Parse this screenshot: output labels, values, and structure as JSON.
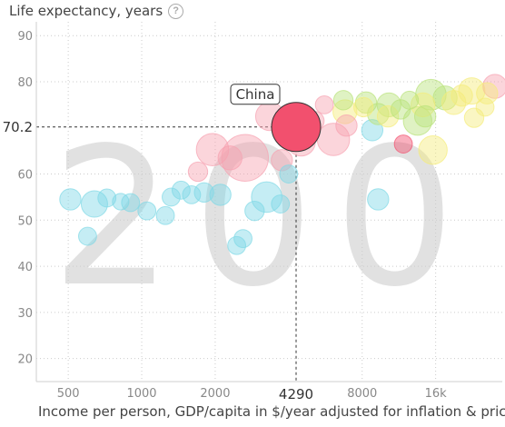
{
  "chart_data": {
    "type": "scatter",
    "title": "",
    "ylabel": "Life expectancy, years",
    "xlabel": "Income per person, GDP/capita in $/year adjusted for inflation & prices",
    "x_scale": "log",
    "xlim": [
      370,
      30000
    ],
    "ylim": [
      15,
      93
    ],
    "x_ticks": [
      500,
      1000,
      2000,
      4290,
      8000,
      16000
    ],
    "x_tick_labels": [
      "500",
      "1000",
      "2000",
      "4290",
      "8000",
      "16k"
    ],
    "y_ticks": [
      20,
      30,
      40,
      50,
      60,
      70.2,
      80,
      90
    ],
    "y_tick_labels": [
      "20",
      "30",
      "40",
      "50",
      "60",
      "70.2",
      "80",
      "90"
    ],
    "grid": true,
    "year_watermark": "200",
    "highlighted": {
      "name": "China",
      "x": 4290,
      "y": 70.2,
      "size": 1,
      "color": "#f2506e"
    },
    "points": [
      {
        "x": 510,
        "y": 54.5,
        "size": 0.15,
        "color": "#7fd8e6"
      },
      {
        "x": 640,
        "y": 53.5,
        "size": 0.25,
        "color": "#7fd8e6"
      },
      {
        "x": 600,
        "y": 46.5,
        "size": 0.1,
        "color": "#7fd8e6"
      },
      {
        "x": 720,
        "y": 54.8,
        "size": 0.1,
        "color": "#7fd8e6"
      },
      {
        "x": 820,
        "y": 54,
        "size": 0.08,
        "color": "#7fd8e6"
      },
      {
        "x": 900,
        "y": 53.8,
        "size": 0.1,
        "color": "#7fd8e6"
      },
      {
        "x": 1050,
        "y": 52,
        "size": 0.1,
        "color": "#7fd8e6"
      },
      {
        "x": 1250,
        "y": 51,
        "size": 0.1,
        "color": "#7fd8e6"
      },
      {
        "x": 1320,
        "y": 55,
        "size": 0.1,
        "color": "#7fd8e6"
      },
      {
        "x": 1450,
        "y": 56.5,
        "size": 0.1,
        "color": "#7fd8e6"
      },
      {
        "x": 1600,
        "y": 55.5,
        "size": 0.1,
        "color": "#7fd8e6"
      },
      {
        "x": 1800,
        "y": 56,
        "size": 0.12,
        "color": "#7fd8e6"
      },
      {
        "x": 2100,
        "y": 55.5,
        "size": 0.15,
        "color": "#7fd8e6"
      },
      {
        "x": 2450,
        "y": 44.5,
        "size": 0.1,
        "color": "#7fd8e6"
      },
      {
        "x": 2600,
        "y": 46,
        "size": 0.1,
        "color": "#7fd8e6"
      },
      {
        "x": 2900,
        "y": 52,
        "size": 0.12,
        "color": "#7fd8e6"
      },
      {
        "x": 3250,
        "y": 55,
        "size": 0.35,
        "color": "#7fd8e6"
      },
      {
        "x": 3700,
        "y": 53.5,
        "size": 0.1,
        "color": "#7fd8e6"
      },
      {
        "x": 4000,
        "y": 60,
        "size": 0.1,
        "color": "#7fd8e6"
      },
      {
        "x": 9300,
        "y": 54.5,
        "size": 0.15,
        "color": "#7fd8e6"
      },
      {
        "x": 8800,
        "y": 69.5,
        "size": 0.15,
        "color": "#7fd8e6"
      },
      {
        "x": 1700,
        "y": 60.5,
        "size": 0.12,
        "color": "#f7a1b0"
      },
      {
        "x": 1950,
        "y": 65.3,
        "size": 0.4,
        "color": "#f7a1b0"
      },
      {
        "x": 2300,
        "y": 63.5,
        "size": 0.2,
        "color": "#f7a1b0"
      },
      {
        "x": 2650,
        "y": 63.5,
        "size": 0.9,
        "color": "#f7a1b0"
      },
      {
        "x": 3350,
        "y": 72.5,
        "size": 0.3,
        "color": "#f7a1b0"
      },
      {
        "x": 3750,
        "y": 63,
        "size": 0.15,
        "color": "#f7a1b0"
      },
      {
        "x": 4500,
        "y": 67,
        "size": 0.3,
        "color": "#f7a1b0"
      },
      {
        "x": 5100,
        "y": 71.5,
        "size": 0.12,
        "color": "#f7a1b0"
      },
      {
        "x": 6100,
        "y": 67.5,
        "size": 0.4,
        "color": "#f7a1b0"
      },
      {
        "x": 6900,
        "y": 70.5,
        "size": 0.15,
        "color": "#f7a1b0"
      },
      {
        "x": 5600,
        "y": 75,
        "size": 0.1,
        "color": "#f7a1b0"
      },
      {
        "x": 4500,
        "y": 72,
        "size": 0.15,
        "color": "#f7a1b0"
      },
      {
        "x": 6700,
        "y": 76,
        "size": 0.12,
        "color": "#b9e27a"
      },
      {
        "x": 8300,
        "y": 75.5,
        "size": 0.15,
        "color": "#b9e27a"
      },
      {
        "x": 9300,
        "y": 73,
        "size": 0.15,
        "color": "#b9e27a"
      },
      {
        "x": 10300,
        "y": 75,
        "size": 0.2,
        "color": "#b9e27a"
      },
      {
        "x": 11500,
        "y": 74,
        "size": 0.12,
        "color": "#b9e27a"
      },
      {
        "x": 12500,
        "y": 76,
        "size": 0.1,
        "color": "#b9e27a"
      },
      {
        "x": 13500,
        "y": 71.5,
        "size": 0.3,
        "color": "#b9e27a"
      },
      {
        "x": 14500,
        "y": 72.5,
        "size": 0.15,
        "color": "#b9e27a"
      },
      {
        "x": 15300,
        "y": 77.2,
        "size": 0.35,
        "color": "#b9e27a"
      },
      {
        "x": 17500,
        "y": 76.5,
        "size": 0.2,
        "color": "#b9e27a"
      },
      {
        "x": 6800,
        "y": 73.5,
        "size": 0.2,
        "color": "#f5ec7a"
      },
      {
        "x": 8100,
        "y": 74.5,
        "size": 0.12,
        "color": "#f5ec7a"
      },
      {
        "x": 14200,
        "y": 75,
        "size": 0.2,
        "color": "#f5ec7a"
      },
      {
        "x": 15600,
        "y": 65.2,
        "size": 0.3,
        "color": "#f5ec7a"
      },
      {
        "x": 19000,
        "y": 75.5,
        "size": 0.2,
        "color": "#f5ec7a"
      },
      {
        "x": 20500,
        "y": 77,
        "size": 0.15,
        "color": "#f5ec7a"
      },
      {
        "x": 22500,
        "y": 78,
        "size": 0.25,
        "color": "#f5ec7a"
      },
      {
        "x": 26000,
        "y": 77.5,
        "size": 0.15,
        "color": "#f5ec7a"
      },
      {
        "x": 10200,
        "y": 72.5,
        "size": 0.15,
        "color": "#f5ec7a"
      },
      {
        "x": 23000,
        "y": 72.2,
        "size": 0.12,
        "color": "#f5ec7a"
      },
      {
        "x": 25500,
        "y": 74.5,
        "size": 0.1,
        "color": "#f5ec7a"
      },
      {
        "x": 11800,
        "y": 66.5,
        "size": 0.1,
        "color": "#f2506e"
      },
      {
        "x": 28000,
        "y": 79,
        "size": 0.2,
        "color": "#f7a1b0"
      }
    ]
  }
}
